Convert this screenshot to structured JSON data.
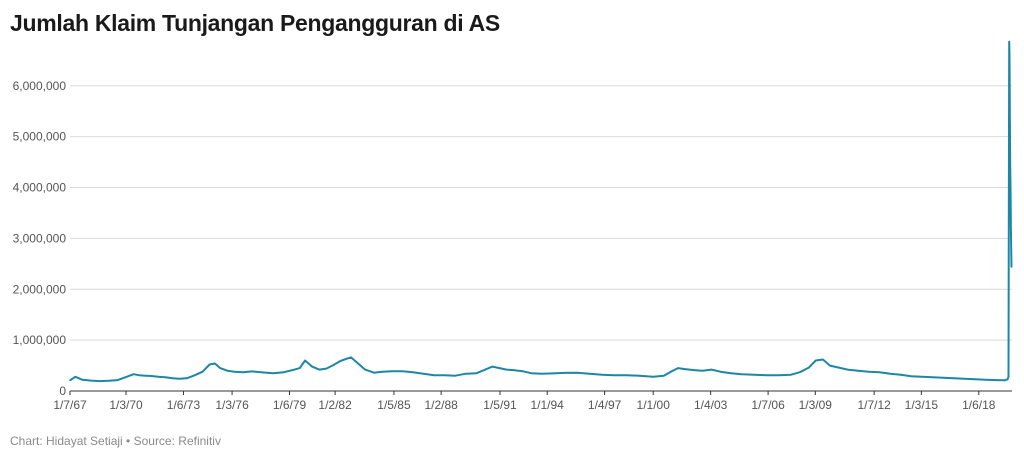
{
  "chart_data": {
    "type": "line",
    "title": "Jumlah Klaim Tunjangan Pengangguran di AS",
    "xlabel": "",
    "ylabel": "",
    "grid": true,
    "ylim": [
      0,
      6900000
    ],
    "yticks": [
      0,
      1000000,
      2000000,
      3000000,
      4000000,
      5000000,
      6000000
    ],
    "ytick_labels": [
      "0",
      "1,000,000",
      "2,000,000",
      "3,000,000",
      "4,000,000",
      "5,000,000",
      "6,000,000"
    ],
    "xlim": [
      1967.0,
      2020.3
    ],
    "xticks": [
      1967.0,
      1970.17,
      1973.42,
      1976.17,
      1979.42,
      1982.0,
      1985.33,
      1988.0,
      1991.33,
      1994.0,
      1997.25,
      2000.0,
      2003.25,
      2006.5,
      2009.17,
      2012.5,
      2015.17,
      2018.42
    ],
    "xtick_labels": [
      "1/7/67",
      "1/3/70",
      "1/6/73",
      "1/3/76",
      "1/6/79",
      "1/2/82",
      "1/5/85",
      "1/2/88",
      "1/5/91",
      "1/1/94",
      "1/4/97",
      "1/1/00",
      "1/4/03",
      "1/7/06",
      "1/3/09",
      "1/7/12",
      "1/3/15",
      "1/6/18"
    ],
    "series": [
      {
        "color": "#1d87a5",
        "x": [
          1967.0,
          1967.3,
          1967.7,
          1968.2,
          1968.7,
          1969.2,
          1969.7,
          1970.2,
          1970.6,
          1970.9,
          1971.3,
          1971.6,
          1972.0,
          1972.4,
          1972.8,
          1973.2,
          1973.6,
          1974.0,
          1974.5,
          1974.9,
          1975.2,
          1975.5,
          1975.9,
          1976.3,
          1976.8,
          1977.3,
          1977.9,
          1978.5,
          1979.1,
          1979.7,
          1980.0,
          1980.3,
          1980.7,
          1981.1,
          1981.5,
          1981.9,
          1982.3,
          1982.7,
          1982.9,
          1983.3,
          1983.7,
          1984.2,
          1984.7,
          1985.2,
          1985.8,
          1986.4,
          1987.0,
          1987.6,
          1988.2,
          1988.8,
          1989.4,
          1990.0,
          1990.5,
          1990.9,
          1991.3,
          1991.7,
          1992.1,
          1992.6,
          1993.1,
          1993.7,
          1994.3,
          1995.0,
          1995.7,
          1996.4,
          1997.1,
          1997.8,
          1998.5,
          1999.2,
          2000.0,
          2000.6,
          2001.0,
          2001.4,
          2001.8,
          2002.3,
          2002.8,
          2003.3,
          2003.8,
          2004.4,
          2005.0,
          2005.7,
          2006.4,
          2007.1,
          2007.8,
          2008.3,
          2008.8,
          2009.2,
          2009.6,
          2010.0,
          2010.5,
          2011.0,
          2011.6,
          2012.2,
          2012.8,
          2013.4,
          2014.0,
          2014.6,
          2015.2,
          2015.8,
          2016.4,
          2017.0,
          2017.6,
          2018.2,
          2018.8,
          2019.4,
          2019.9,
          2020.05,
          2020.1,
          2020.12,
          2020.14,
          2020.16,
          2020.18,
          2020.2,
          2020.22,
          2020.24,
          2020.27
        ],
        "values": [
          210000,
          280000,
          220000,
          205000,
          195000,
          200000,
          215000,
          280000,
          330000,
          310000,
          300000,
          295000,
          280000,
          270000,
          250000,
          240000,
          250000,
          300000,
          380000,
          520000,
          540000,
          450000,
          400000,
          380000,
          370000,
          385000,
          365000,
          350000,
          370000,
          420000,
          450000,
          600000,
          480000,
          420000,
          440000,
          510000,
          590000,
          640000,
          660000,
          540000,
          420000,
          360000,
          380000,
          390000,
          390000,
          370000,
          340000,
          310000,
          310000,
          300000,
          340000,
          350000,
          420000,
          480000,
          450000,
          420000,
          410000,
          390000,
          350000,
          340000,
          345000,
          355000,
          360000,
          340000,
          320000,
          310000,
          310000,
          300000,
          280000,
          300000,
          380000,
          450000,
          430000,
          410000,
          400000,
          420000,
          380000,
          350000,
          330000,
          320000,
          310000,
          310000,
          320000,
          370000,
          460000,
          600000,
          620000,
          500000,
          460000,
          420000,
          400000,
          380000,
          370000,
          340000,
          320000,
          290000,
          280000,
          270000,
          260000,
          250000,
          240000,
          230000,
          220000,
          215000,
          210000,
          230000,
          281000,
          3307000,
          6867000,
          6615000,
          5237000,
          4442000,
          3867000,
          3176000,
          2438000
        ]
      }
    ]
  },
  "footer_text": "Chart: Hidayat Setiaji • Source: Refinitiv"
}
